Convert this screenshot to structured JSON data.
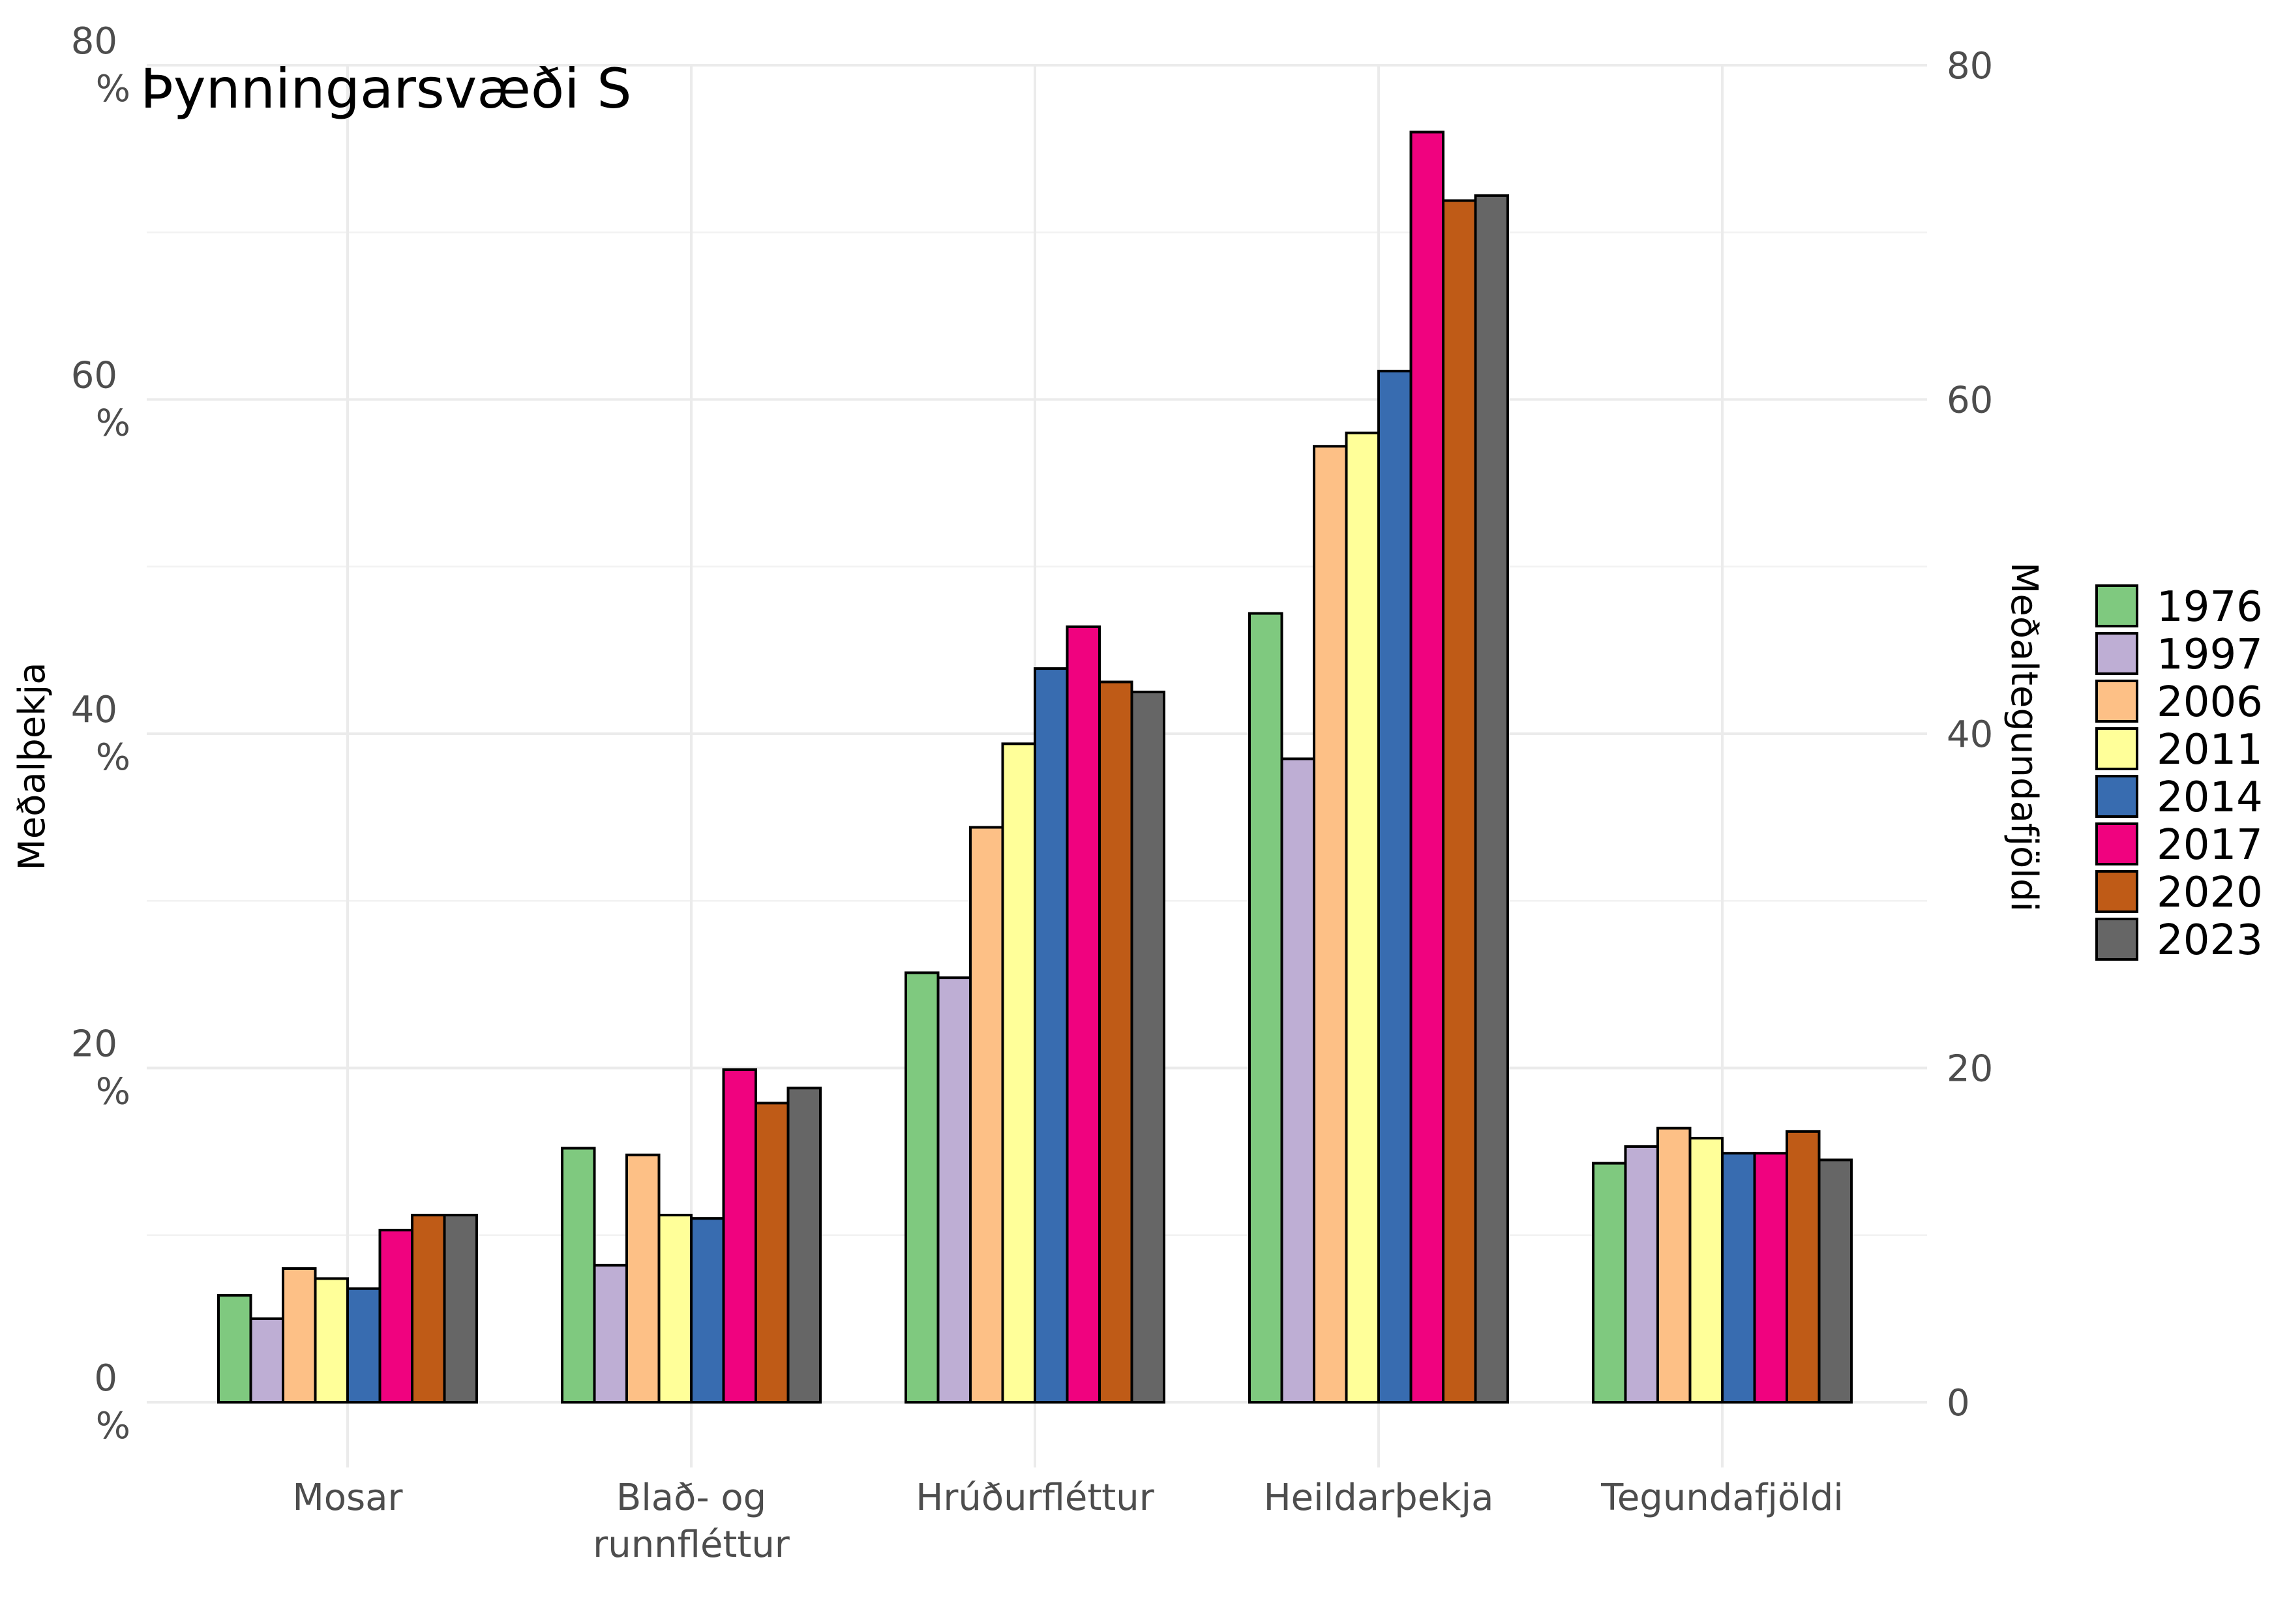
{
  "chart_data": {
    "type": "bar",
    "title": "Þynningarsvæði S",
    "xlabel": "",
    "ylabel": "Meðalþekja",
    "y2label": "Meðaltegundafjöldi",
    "ylim": [
      0,
      80
    ],
    "yticks": [
      {
        "value": 0,
        "line1": "0",
        "line2": "%"
      },
      {
        "value": 20,
        "line1": "20",
        "line2": "%"
      },
      {
        "value": 40,
        "line1": "40",
        "line2": "%"
      },
      {
        "value": 60,
        "line1": "60",
        "line2": "%"
      },
      {
        "value": 80,
        "line1": "80",
        "line2": "%"
      }
    ],
    "y2ticks": [
      "0",
      "20",
      "40",
      "60",
      "80"
    ],
    "grid": true,
    "legend_position": "right",
    "categories": [
      [
        "Mosar"
      ],
      [
        "Blað- og",
        "runnfléttur"
      ],
      [
        "Hrúðurfléttur"
      ],
      [
        "Heildarþekja"
      ],
      [
        "Tegundafjöldi"
      ]
    ],
    "series": [
      {
        "name": "1976",
        "color": "#7fc97f",
        "values": [
          6.4,
          15.2,
          25.7,
          47.2,
          14.3
        ]
      },
      {
        "name": "1997",
        "color": "#beaed4",
        "values": [
          5.0,
          8.2,
          25.4,
          38.5,
          15.3
        ]
      },
      {
        "name": "2006",
        "color": "#fdc086",
        "values": [
          8.0,
          14.8,
          34.4,
          57.2,
          16.4
        ]
      },
      {
        "name": "2011",
        "color": "#ffff99",
        "values": [
          7.4,
          11.2,
          39.4,
          58.0,
          15.8
        ]
      },
      {
        "name": "2014",
        "color": "#386cb0",
        "values": [
          6.8,
          11.0,
          43.9,
          61.7,
          14.9
        ]
      },
      {
        "name": "2017",
        "color": "#f0027f",
        "values": [
          10.3,
          19.9,
          46.4,
          76.0,
          14.9
        ]
      },
      {
        "name": "2020",
        "color": "#bf5b17",
        "values": [
          11.2,
          17.9,
          43.1,
          71.9,
          16.2
        ]
      },
      {
        "name": "2023",
        "color": "#666666",
        "values": [
          11.2,
          18.8,
          42.5,
          72.2,
          14.5
        ]
      }
    ]
  }
}
